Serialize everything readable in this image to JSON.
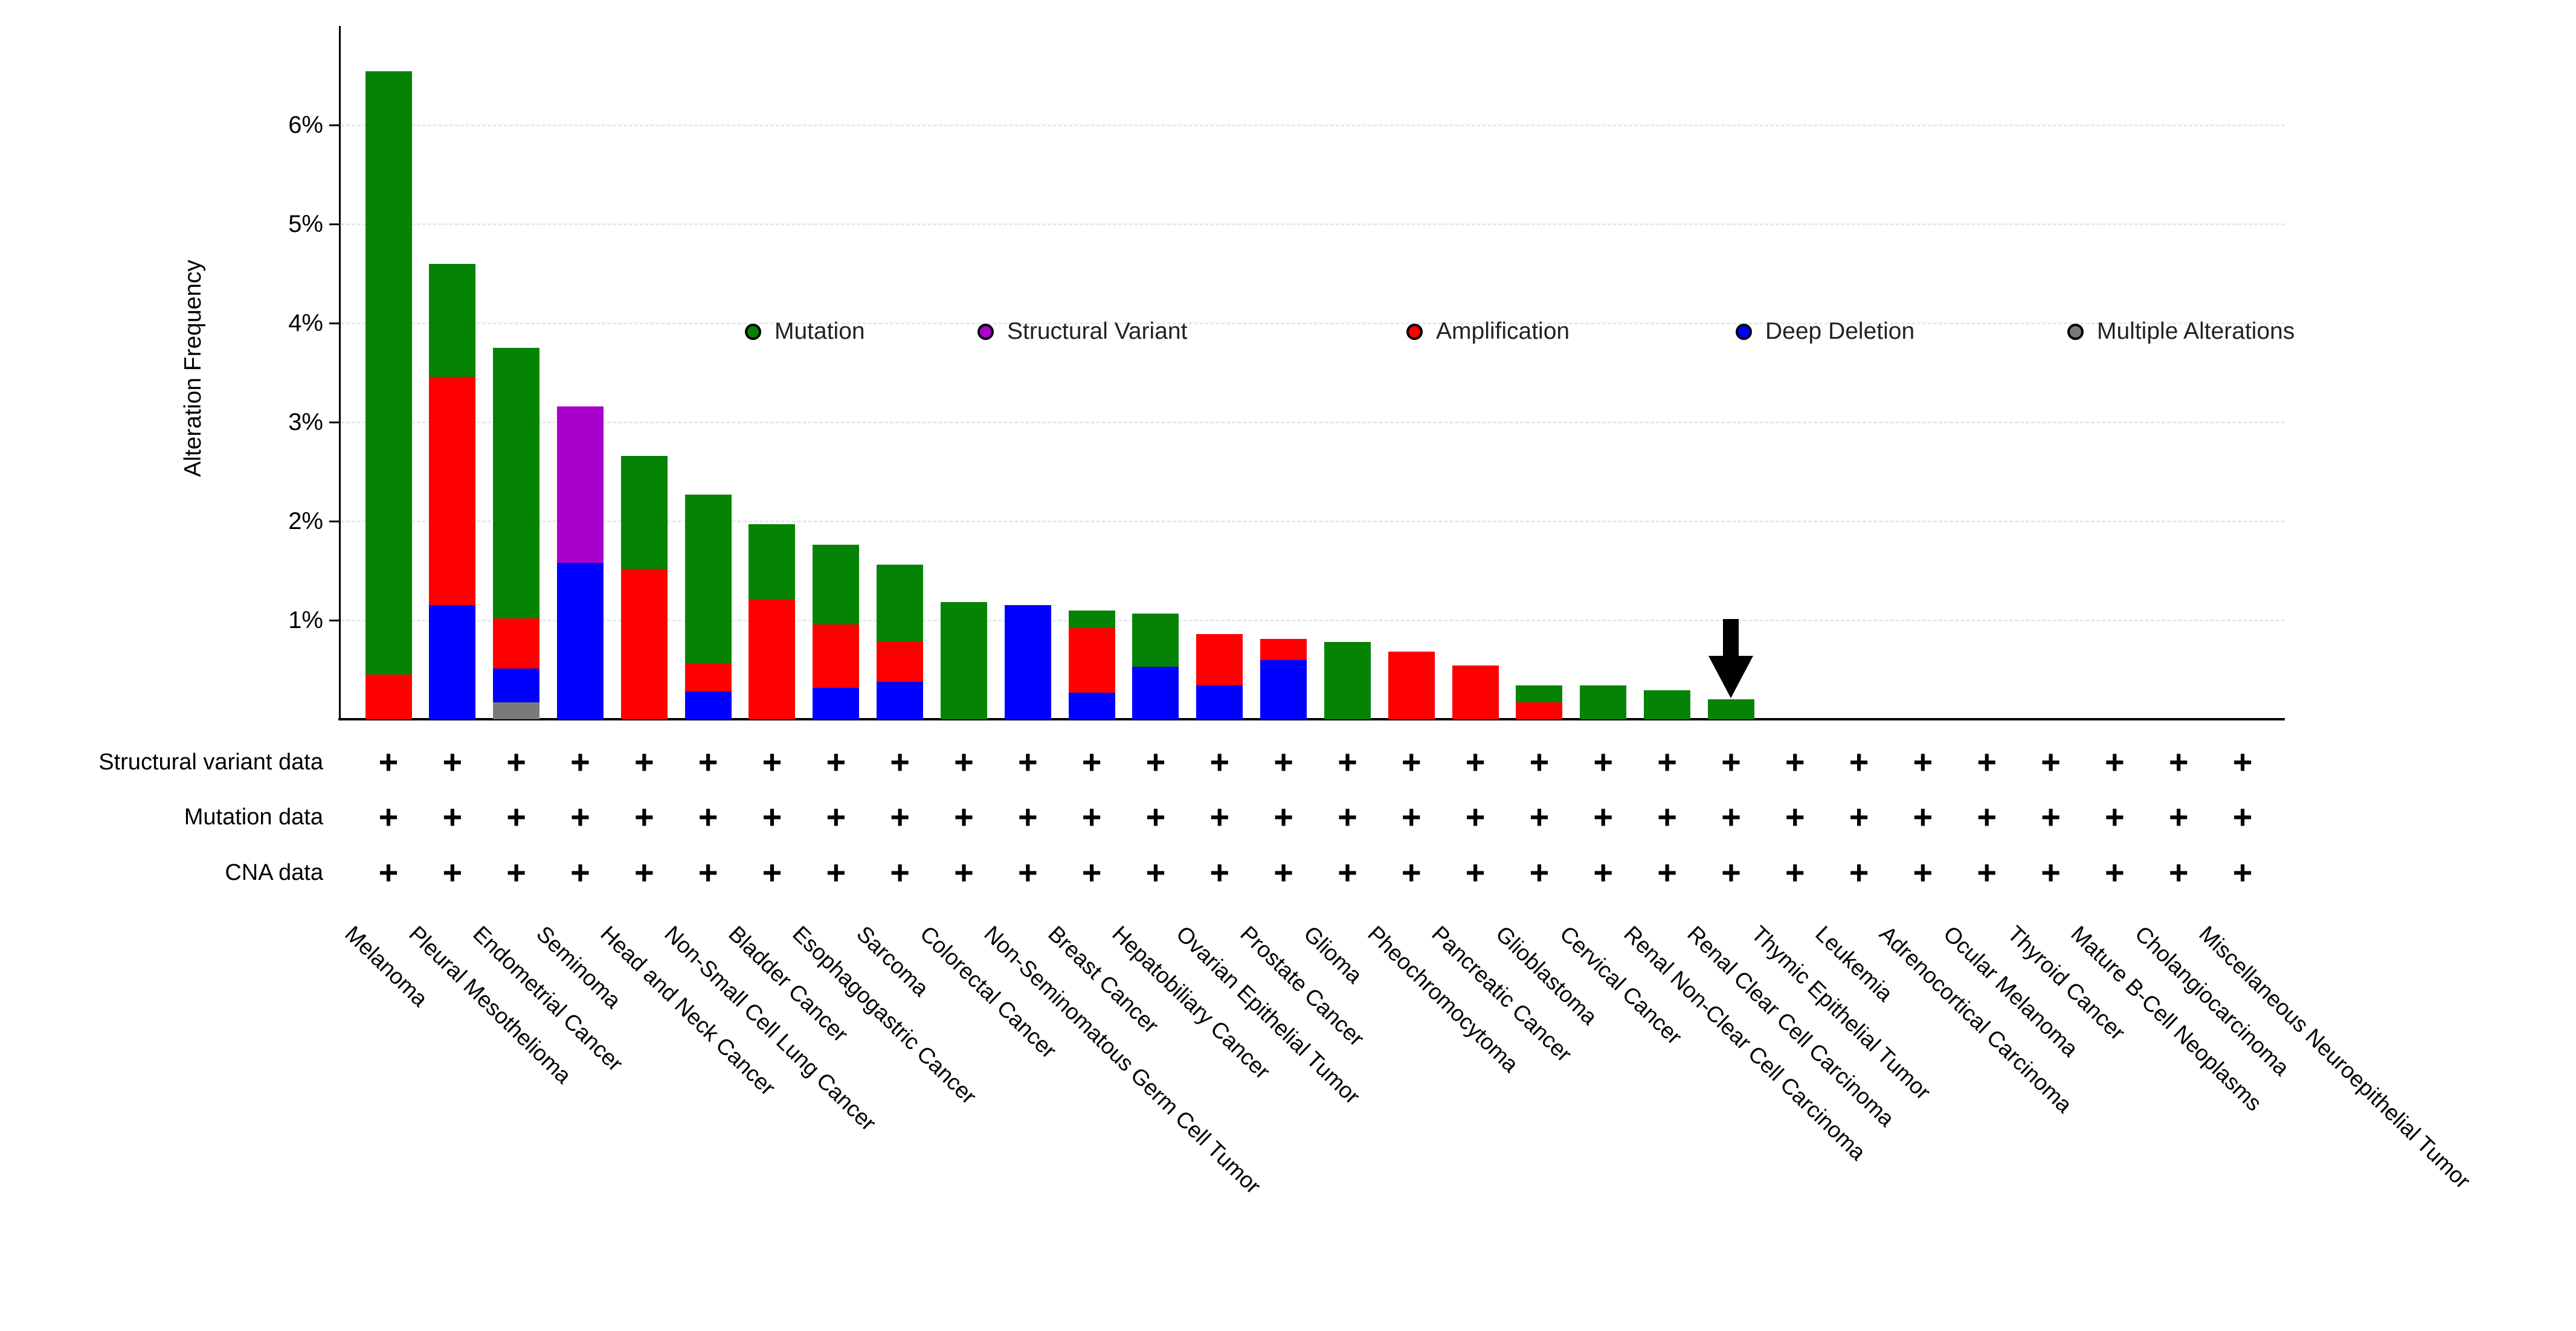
{
  "chart_data": {
    "type": "bar",
    "stacked": true,
    "ylabel": "Alteration Frequency",
    "ylim": [
      0,
      6.9
    ],
    "grid": "dashed-horizontal",
    "yticks": [
      {
        "value": 1,
        "label": "1%"
      },
      {
        "value": 2,
        "label": "2%"
      },
      {
        "value": 3,
        "label": "3%"
      },
      {
        "value": 4,
        "label": "4%"
      },
      {
        "value": 5,
        "label": "5%"
      },
      {
        "value": 6,
        "label": "6%"
      }
    ],
    "legend_position": "inside-top",
    "legend": [
      {
        "name": "Mutation",
        "color": "#058305"
      },
      {
        "name": "Structural Variant",
        "color": "#aa00cc"
      },
      {
        "name": "Amplification",
        "color": "#fe0000"
      },
      {
        "name": "Deep Deletion",
        "color": "#0000fe"
      },
      {
        "name": "Multiple Alterations",
        "color": "#7a7a7a"
      }
    ],
    "categories": [
      "Melanoma",
      "Pleural Mesothelioma",
      "Endometrial Cancer",
      "Seminoma",
      "Head and Neck Cancer",
      "Non-Small Cell Lung Cancer",
      "Bladder Cancer",
      "Esophagogastric Cancer",
      "Sarcoma",
      "Colorectal Cancer",
      "Non-Seminomatous Germ Cell Tumor",
      "Breast Cancer",
      "Hepatobiliary Cancer",
      "Ovarian Epithelial Tumor",
      "Prostate Cancer",
      "Glioma",
      "Pheochromocytoma",
      "Pancreatic Cancer",
      "Glioblastoma",
      "Cervical Cancer",
      "Renal Non-Clear Cell Carcinoma",
      "Renal Clear Cell Carcinoma",
      "Thymic Epithelial Tumor",
      "Leukemia",
      "Adrenocortical Carcinoma",
      "Ocular Melanoma",
      "Thyroid Cancer",
      "Mature B-Cell Neoplasms",
      "Cholangiocarcinoma",
      "Miscellaneous Neuroepithelial Tumor"
    ],
    "stack_order_bottom_to_top": [
      "Multiple Alterations",
      "Deep Deletion",
      "Amplification",
      "Structural Variant",
      "Mutation"
    ],
    "series": [
      {
        "name": "Multiple Alterations",
        "color": "#7a7a7a",
        "values": [
          0,
          0,
          0.17,
          0,
          0,
          0,
          0,
          0,
          0,
          0,
          0,
          0,
          0,
          0,
          0,
          0,
          0,
          0,
          0,
          0,
          0,
          0,
          0,
          0,
          0,
          0,
          0,
          0,
          0,
          0
        ]
      },
      {
        "name": "Deep Deletion",
        "color": "#0000fe",
        "values": [
          0,
          1.15,
          0.34,
          1.58,
          0,
          0.28,
          0,
          0.32,
          0.38,
          0,
          1.15,
          0.27,
          0.53,
          0.34,
          0.6,
          0,
          0,
          0,
          0,
          0,
          0,
          0,
          0,
          0,
          0,
          0,
          0,
          0,
          0,
          0
        ]
      },
      {
        "name": "Amplification",
        "color": "#fe0000",
        "values": [
          0.45,
          2.31,
          0.51,
          0,
          1.52,
          0.29,
          1.21,
          0.64,
          0.4,
          0,
          0,
          0.65,
          0,
          0.52,
          0.21,
          0,
          0.68,
          0.54,
          0.17,
          0,
          0,
          0,
          0,
          0,
          0,
          0,
          0,
          0,
          0,
          0
        ]
      },
      {
        "name": "Structural Variant",
        "color": "#aa00cc",
        "values": [
          0,
          0,
          0,
          1.58,
          0,
          0,
          0,
          0,
          0,
          0,
          0,
          0,
          0,
          0,
          0,
          0,
          0,
          0,
          0,
          0,
          0,
          0,
          0,
          0,
          0,
          0,
          0,
          0,
          0,
          0
        ]
      },
      {
        "name": "Mutation",
        "color": "#058305",
        "values": [
          6.09,
          1.14,
          2.73,
          0,
          1.14,
          1.7,
          0.76,
          0.8,
          0.78,
          1.18,
          0,
          0.18,
          0.54,
          0,
          0,
          0.78,
          0,
          0,
          0.17,
          0.34,
          0.29,
          0.2,
          0,
          0,
          0,
          0,
          0,
          0,
          0,
          0
        ]
      }
    ],
    "annotation": {
      "type": "down-arrow",
      "category": "Renal Clear Cell Carcinoma"
    }
  },
  "availability_table": {
    "plus_symbol": "+",
    "rows": [
      {
        "label": "Structural variant data"
      },
      {
        "label": "Mutation data"
      },
      {
        "label": "CNA data"
      }
    ],
    "columns_with_data": 30
  }
}
